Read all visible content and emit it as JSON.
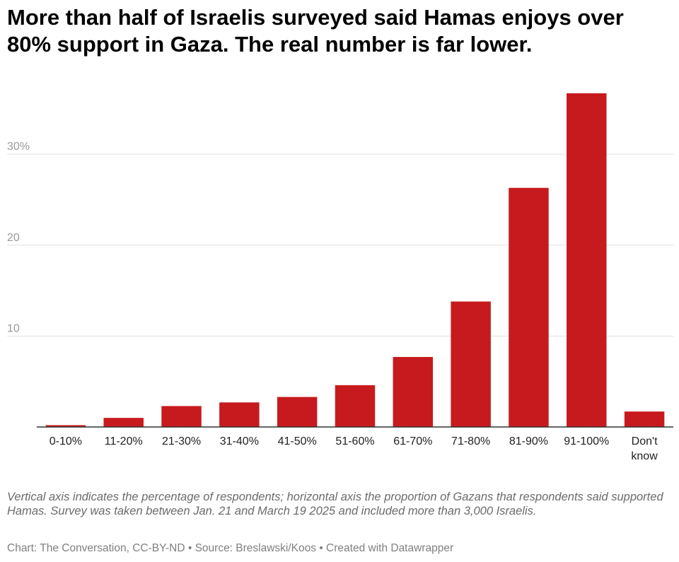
{
  "chart_data": {
    "type": "bar",
    "title": "More than half of Israelis surveyed said Hamas enjoys over 80% support in Gaza. The real number is far lower.",
    "xlabel": "",
    "ylabel": "",
    "categories": [
      "0-10%",
      "11-20%",
      "21-30%",
      "31-40%",
      "41-50%",
      "51-60%",
      "61-70%",
      "71-80%",
      "81-90%",
      "91-100%",
      "Don't know"
    ],
    "values": [
      0.2,
      1.0,
      2.3,
      2.7,
      3.3,
      4.6,
      7.7,
      13.8,
      26.3,
      36.7,
      1.7
    ],
    "ylim": [
      0,
      36.7
    ],
    "yticks": [
      {
        "value": 10,
        "label": "10"
      },
      {
        "value": 20,
        "label": "20"
      },
      {
        "value": 30,
        "label": "30%"
      }
    ],
    "grid": true,
    "bar_color": "#c71a1e"
  },
  "footer": {
    "note": "Vertical axis indicates the percentage of respondents; horizontal axis the proportion of Gazans that respondents said supported Hamas. Survey was taken between Jan. 21 and March 19 2025 and included more than 3,000 Israelis.",
    "credit": "Chart: The Conversation, CC-BY-ND • Source: Breslawski/Koos • Created with Datawrapper"
  }
}
